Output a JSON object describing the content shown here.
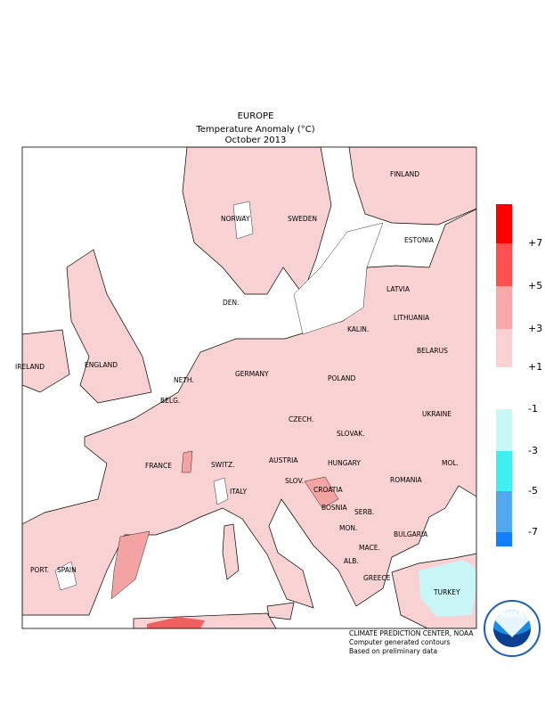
{
  "header": {
    "region": "EUROPE",
    "subtitle": "Temperature Anomaly (°C)",
    "period": "October 2013"
  },
  "map_labels": [
    "FINLAND",
    "NORWAY",
    "SWEDEN",
    "ESTONIA",
    "LATVIA",
    "DEN.",
    "LITHUANIA",
    "KALIN.",
    "IRELAND",
    "ENGLAND",
    "BELARUS",
    "NETH.",
    "GERMANY",
    "POLAND",
    "BELG.",
    "UKRAINE",
    "CZECH.",
    "SLOVAK.",
    "FRANCE",
    "SWITZ.",
    "AUSTRIA",
    "HUNGARY",
    "MOL.",
    "SLOV.",
    "CROATIA",
    "ROMANIA",
    "ITALY",
    "BOSNIA",
    "SERB.",
    "BULGARIA",
    "MON.",
    "PORT.",
    "SPAIN",
    "MACE.",
    "ALB.",
    "GREECE",
    "TURKEY"
  ],
  "legend": {
    "labels": [
      "+7",
      "+5",
      "+3",
      "+1",
      "-1",
      "-3",
      "-5",
      "-7"
    ]
  },
  "footer": [
    "CLIMATE PREDICTION CENTER, NOAA",
    "Computer generated contours",
    "Based on preliminary data"
  ],
  "logo": "NOAA"
}
